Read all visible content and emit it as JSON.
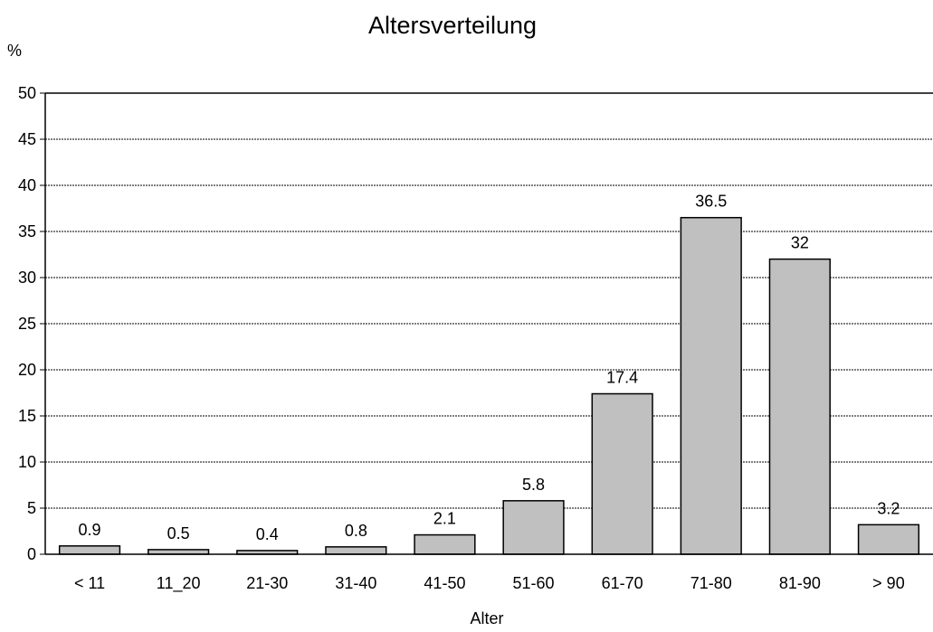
{
  "chart_data": {
    "type": "bar",
    "title": "Altersverteilung",
    "xlabel": "Alter",
    "ylabel": "%",
    "categories": [
      "< 11",
      "11_20",
      "21-30",
      "31-40",
      "41-50",
      "51-60",
      "61-70",
      "71-80",
      "81-90",
      "> 90"
    ],
    "values": [
      0.9,
      0.5,
      0.4,
      0.8,
      2.1,
      5.8,
      17.4,
      36.5,
      32,
      3.2
    ],
    "value_labels": [
      "0.9",
      "0.5",
      "0.4",
      "0.8",
      "2.1",
      "5.8",
      "17.4",
      "36.5",
      "32",
      "3.2"
    ],
    "ylim": [
      0,
      50
    ],
    "yticks": [
      "0",
      "5",
      "10",
      "15",
      "20",
      "25",
      "30",
      "35",
      "40",
      "45",
      "50"
    ],
    "grid": true,
    "bar_color": "#c0c0c0",
    "bar_edge_color": "#000000"
  }
}
